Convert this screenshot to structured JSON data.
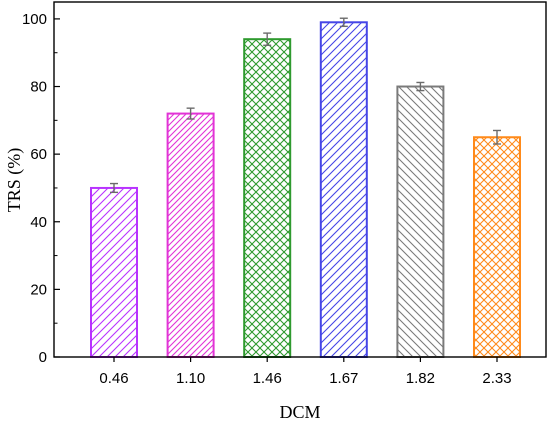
{
  "chart_data": {
    "type": "bar",
    "title": "",
    "xlabel": "DCM",
    "ylabel": "TRS (%)",
    "categories": [
      "0.46",
      "1.10",
      "1.46",
      "1.67",
      "1.82",
      "2.33"
    ],
    "values": [
      50,
      72,
      94,
      99,
      80,
      65
    ],
    "errors": [
      1.3,
      1.6,
      1.8,
      1.2,
      1.2,
      2.0
    ],
    "ylim": [
      0,
      105
    ],
    "yticks": [
      "0",
      "20",
      "40",
      "60",
      "80",
      "100"
    ],
    "ytick_values": [
      0,
      20,
      40,
      60,
      80,
      100
    ],
    "grid": false,
    "legend": "none",
    "bar_colors": [
      "#b833ff",
      "#e233d6",
      "#2e9a2e",
      "#4545e6",
      "#7a7a7a",
      "#ff8a1a"
    ],
    "bar_patterns": [
      "diag-right",
      "diag-right-dense",
      "crosshatch",
      "diag-right",
      "diag-left",
      "crosshatch"
    ],
    "error_bar_color": "#6b6b6b"
  }
}
